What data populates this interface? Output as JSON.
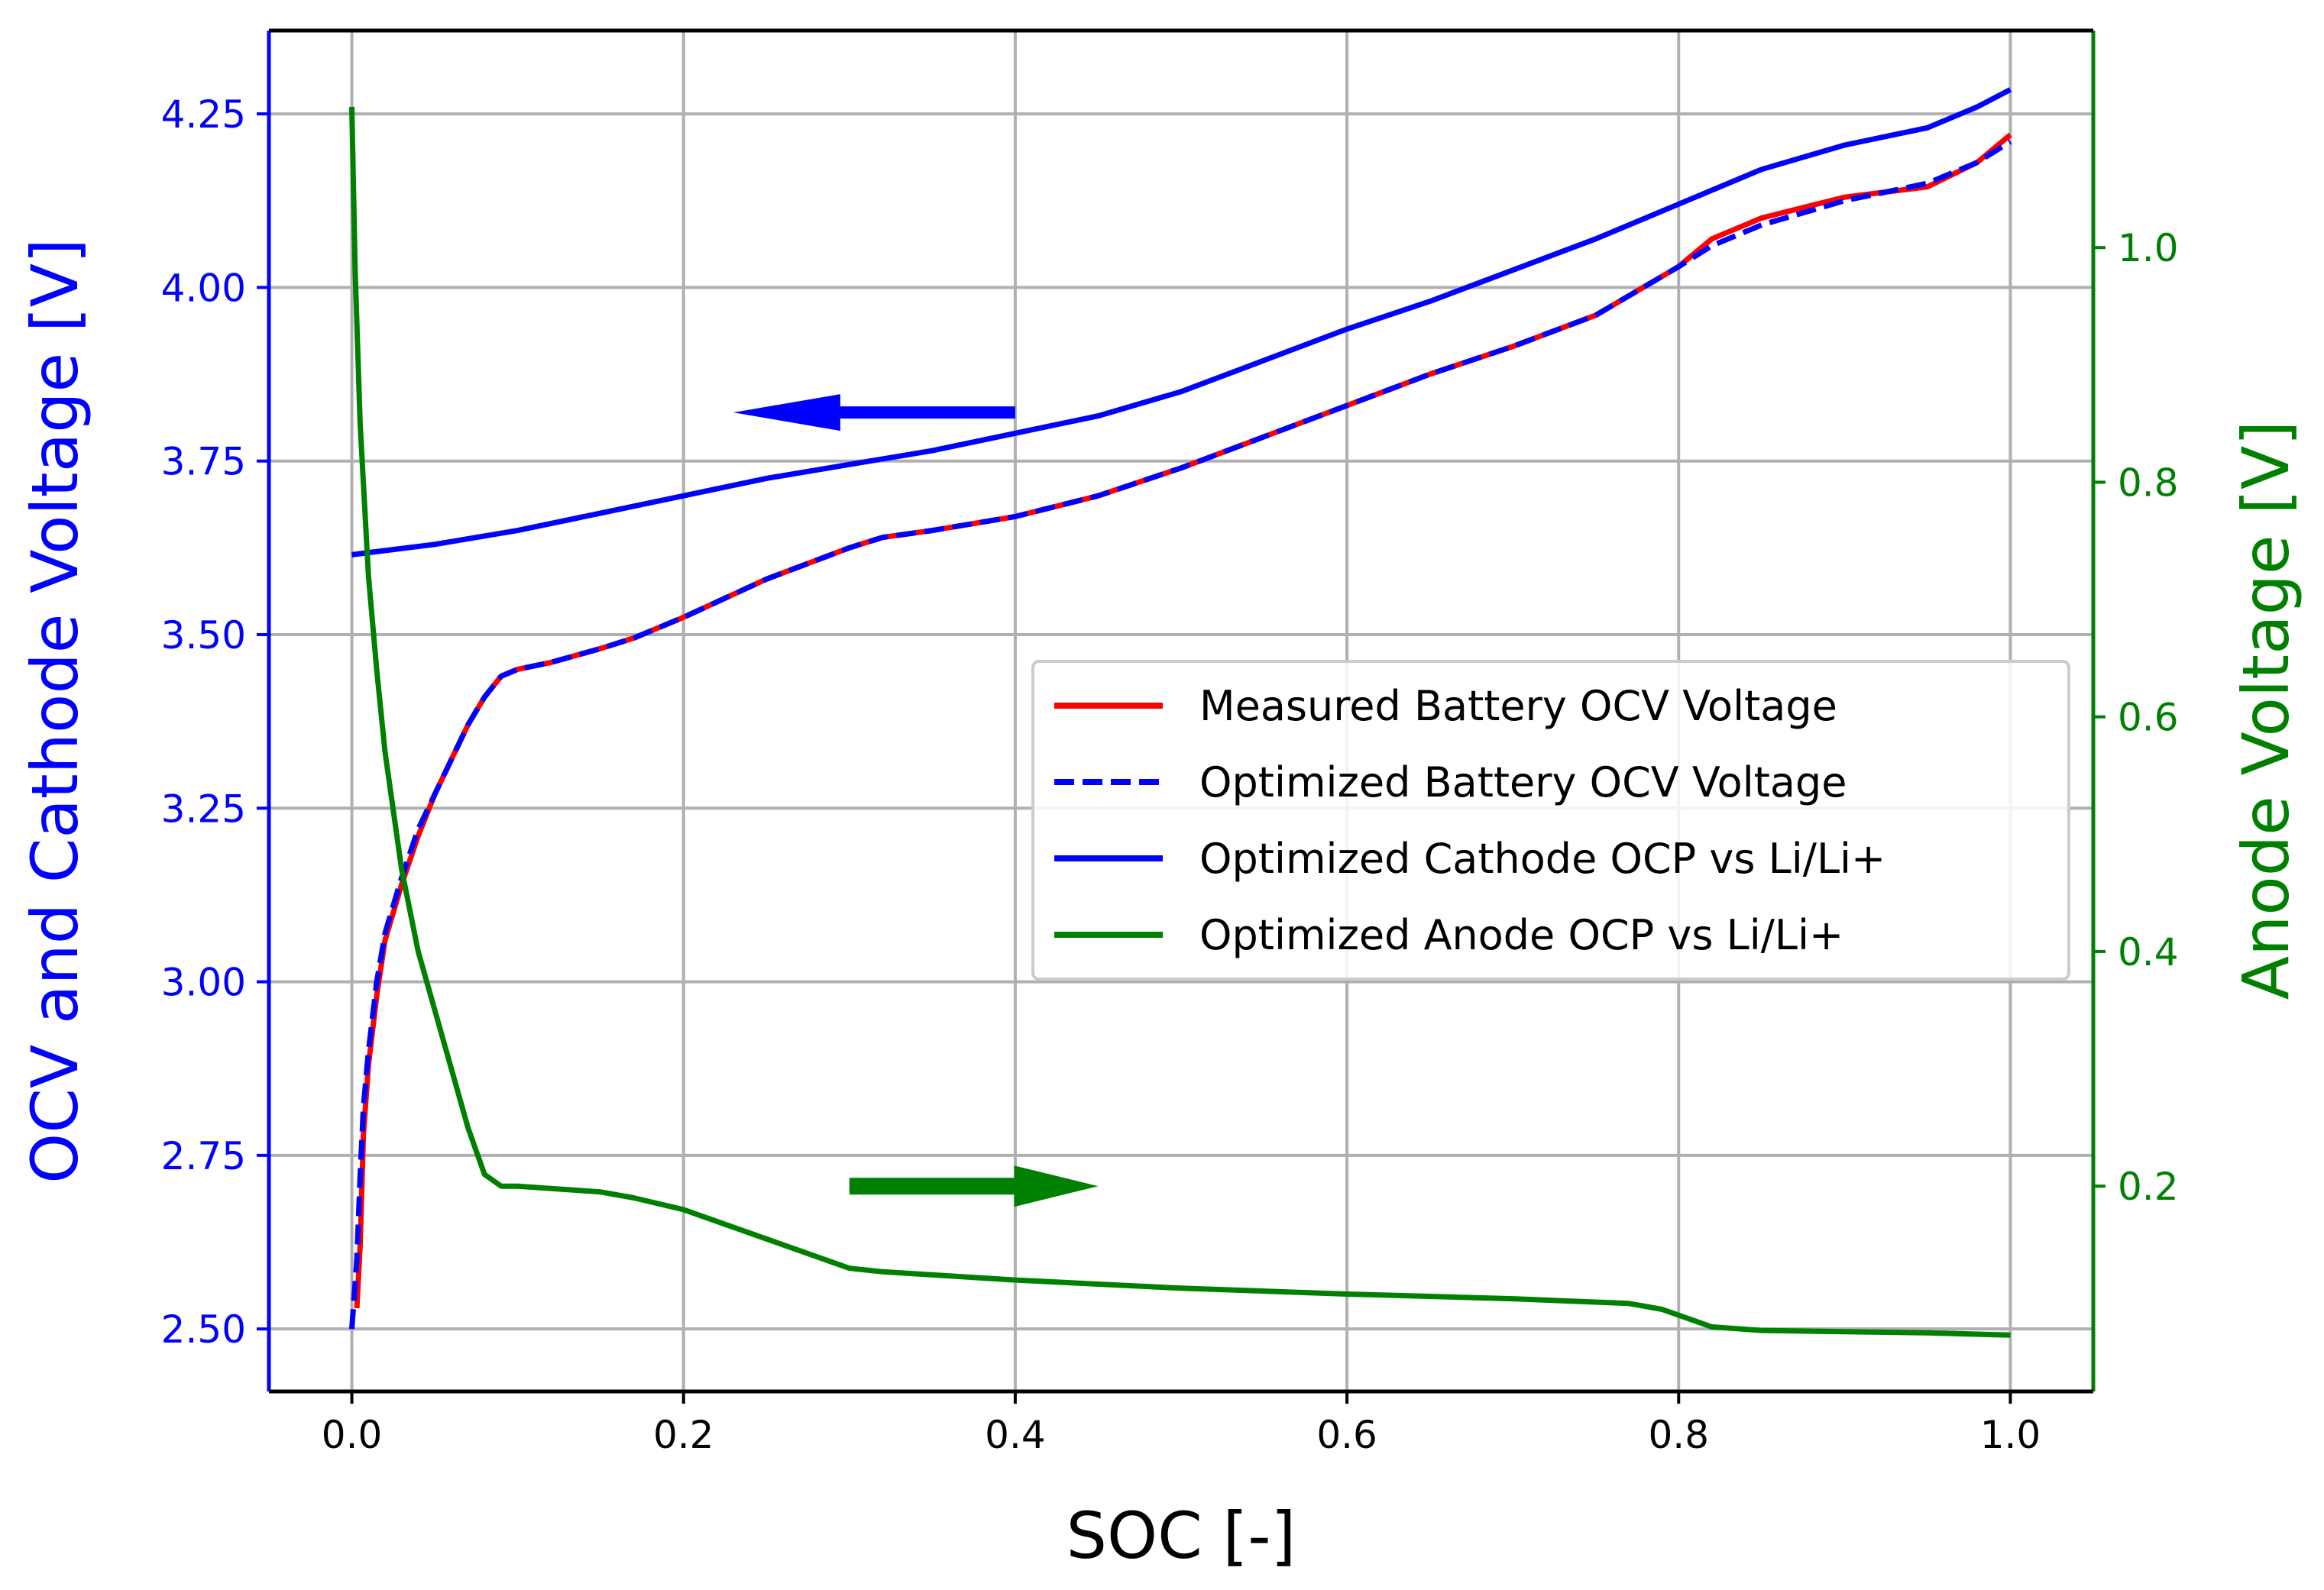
{
  "chart_data": {
    "type": "line",
    "title": "",
    "xlabel": "SOC [-]",
    "ylabel_left": "OCV and Cathode Voltage [V]",
    "ylabel_right": "Anode Voltage [V]",
    "xlim": [
      -0.05,
      1.05
    ],
    "ylim_left": [
      2.41,
      4.37
    ],
    "ylim_right": [
      0.025,
      1.185
    ],
    "grid": true,
    "legend_position": "center-right",
    "x_ticks": [
      0.0,
      0.2,
      0.4,
      0.6,
      0.8,
      1.0
    ],
    "x_tick_labels": [
      "0.0",
      "0.2",
      "0.4",
      "0.6",
      "0.8",
      "1.0"
    ],
    "y_left_ticks": [
      2.5,
      2.75,
      3.0,
      3.25,
      3.5,
      3.75,
      4.0,
      4.25
    ],
    "y_left_tick_labels": [
      "2.50",
      "2.75",
      "3.00",
      "3.25",
      "3.50",
      "3.75",
      "4.00",
      "4.25"
    ],
    "y_right_ticks": [
      0.2,
      0.4,
      0.6,
      0.8,
      1.0
    ],
    "y_right_tick_labels": [
      "0.2",
      "0.4",
      "0.6",
      "0.8",
      "1.0"
    ],
    "colors": {
      "left_axis": "#0000ff",
      "right_axis": "#008000",
      "measured": "#ff0000",
      "optimized_ocv": "#0000ff",
      "cathode": "#0000ff",
      "anode": "#008000",
      "grid": "#b0b0b0"
    },
    "series": [
      {
        "name": "Measured Battery OCV Voltage",
        "axis": "left",
        "style": "solid",
        "color": "#ff0000",
        "points": [
          [
            0.003,
            2.53
          ],
          [
            0.005,
            2.62
          ],
          [
            0.007,
            2.78
          ],
          [
            0.01,
            2.88
          ],
          [
            0.015,
            2.98
          ],
          [
            0.02,
            3.06
          ],
          [
            0.03,
            3.14
          ],
          [
            0.04,
            3.21
          ],
          [
            0.05,
            3.27
          ],
          [
            0.06,
            3.32
          ],
          [
            0.07,
            3.37
          ],
          [
            0.08,
            3.41
          ],
          [
            0.09,
            3.44
          ],
          [
            0.1,
            3.45
          ],
          [
            0.12,
            3.46
          ],
          [
            0.15,
            3.48
          ],
          [
            0.17,
            3.495
          ],
          [
            0.2,
            3.525
          ],
          [
            0.25,
            3.58
          ],
          [
            0.3,
            3.625
          ],
          [
            0.32,
            3.64
          ],
          [
            0.35,
            3.65
          ],
          [
            0.4,
            3.67
          ],
          [
            0.45,
            3.7
          ],
          [
            0.5,
            3.74
          ],
          [
            0.55,
            3.785
          ],
          [
            0.6,
            3.83
          ],
          [
            0.65,
            3.875
          ],
          [
            0.7,
            3.915
          ],
          [
            0.75,
            3.96
          ],
          [
            0.8,
            4.03
          ],
          [
            0.82,
            4.07
          ],
          [
            0.85,
            4.1
          ],
          [
            0.9,
            4.13
          ],
          [
            0.95,
            4.145
          ],
          [
            0.98,
            4.18
          ],
          [
            1.0,
            4.22
          ]
        ]
      },
      {
        "name": "Optimized Battery OCV Voltage",
        "axis": "left",
        "style": "dashed",
        "color": "#0000ff",
        "points": [
          [
            0.0,
            2.5
          ],
          [
            0.003,
            2.6
          ],
          [
            0.005,
            2.72
          ],
          [
            0.007,
            2.82
          ],
          [
            0.01,
            2.9
          ],
          [
            0.015,
            3.0
          ],
          [
            0.02,
            3.07
          ],
          [
            0.03,
            3.15
          ],
          [
            0.04,
            3.22
          ],
          [
            0.05,
            3.27
          ],
          [
            0.06,
            3.32
          ],
          [
            0.07,
            3.37
          ],
          [
            0.08,
            3.41
          ],
          [
            0.09,
            3.44
          ],
          [
            0.1,
            3.45
          ],
          [
            0.12,
            3.46
          ],
          [
            0.15,
            3.48
          ],
          [
            0.17,
            3.495
          ],
          [
            0.2,
            3.525
          ],
          [
            0.25,
            3.58
          ],
          [
            0.3,
            3.625
          ],
          [
            0.32,
            3.64
          ],
          [
            0.35,
            3.65
          ],
          [
            0.4,
            3.67
          ],
          [
            0.45,
            3.7
          ],
          [
            0.5,
            3.74
          ],
          [
            0.55,
            3.785
          ],
          [
            0.6,
            3.83
          ],
          [
            0.65,
            3.875
          ],
          [
            0.7,
            3.915
          ],
          [
            0.75,
            3.96
          ],
          [
            0.8,
            4.03
          ],
          [
            0.82,
            4.06
          ],
          [
            0.85,
            4.09
          ],
          [
            0.9,
            4.125
          ],
          [
            0.95,
            4.15
          ],
          [
            0.98,
            4.18
          ],
          [
            1.0,
            4.21
          ]
        ]
      },
      {
        "name": "Optimized Cathode OCP vs Li/Li+",
        "axis": "left",
        "style": "solid",
        "color": "#0000ff",
        "points": [
          [
            0.0,
            3.615
          ],
          [
            0.05,
            3.63
          ],
          [
            0.1,
            3.65
          ],
          [
            0.15,
            3.675
          ],
          [
            0.2,
            3.7
          ],
          [
            0.25,
            3.725
          ],
          [
            0.3,
            3.745
          ],
          [
            0.35,
            3.765
          ],
          [
            0.4,
            3.79
          ],
          [
            0.45,
            3.815
          ],
          [
            0.5,
            3.85
          ],
          [
            0.55,
            3.895
          ],
          [
            0.6,
            3.94
          ],
          [
            0.65,
            3.98
          ],
          [
            0.7,
            4.025
          ],
          [
            0.75,
            4.07
          ],
          [
            0.8,
            4.12
          ],
          [
            0.85,
            4.17
          ],
          [
            0.9,
            4.205
          ],
          [
            0.95,
            4.23
          ],
          [
            0.98,
            4.26
          ],
          [
            1.0,
            4.285
          ]
        ]
      },
      {
        "name": "Optimized Anode OCP vs Li/Li+",
        "axis": "right",
        "style": "solid",
        "color": "#008000",
        "points": [
          [
            0.0,
            1.12
          ],
          [
            0.002,
            0.98
          ],
          [
            0.005,
            0.85
          ],
          [
            0.01,
            0.72
          ],
          [
            0.015,
            0.64
          ],
          [
            0.02,
            0.57
          ],
          [
            0.03,
            0.47
          ],
          [
            0.04,
            0.4
          ],
          [
            0.05,
            0.35
          ],
          [
            0.06,
            0.3
          ],
          [
            0.07,
            0.25
          ],
          [
            0.08,
            0.21
          ],
          [
            0.09,
            0.2
          ],
          [
            0.1,
            0.2
          ],
          [
            0.15,
            0.195
          ],
          [
            0.17,
            0.19
          ],
          [
            0.2,
            0.18
          ],
          [
            0.25,
            0.155
          ],
          [
            0.3,
            0.13
          ],
          [
            0.32,
            0.127
          ],
          [
            0.4,
            0.12
          ],
          [
            0.5,
            0.113
          ],
          [
            0.6,
            0.108
          ],
          [
            0.7,
            0.104
          ],
          [
            0.77,
            0.1
          ],
          [
            0.79,
            0.095
          ],
          [
            0.81,
            0.085
          ],
          [
            0.82,
            0.08
          ],
          [
            0.85,
            0.077
          ],
          [
            0.9,
            0.076
          ],
          [
            0.95,
            0.075
          ],
          [
            1.0,
            0.073
          ]
        ]
      }
    ],
    "annotations": [
      {
        "label": "arrow-left-axis",
        "from": [
          0.4,
          3.82
        ],
        "to": [
          0.23,
          3.82
        ],
        "axis": "left",
        "color": "#0000ff"
      },
      {
        "label": "arrow-right-axis",
        "from": [
          0.3,
          0.2
        ],
        "to": [
          0.45,
          0.2
        ],
        "axis": "right",
        "color": "#008000"
      }
    ]
  }
}
